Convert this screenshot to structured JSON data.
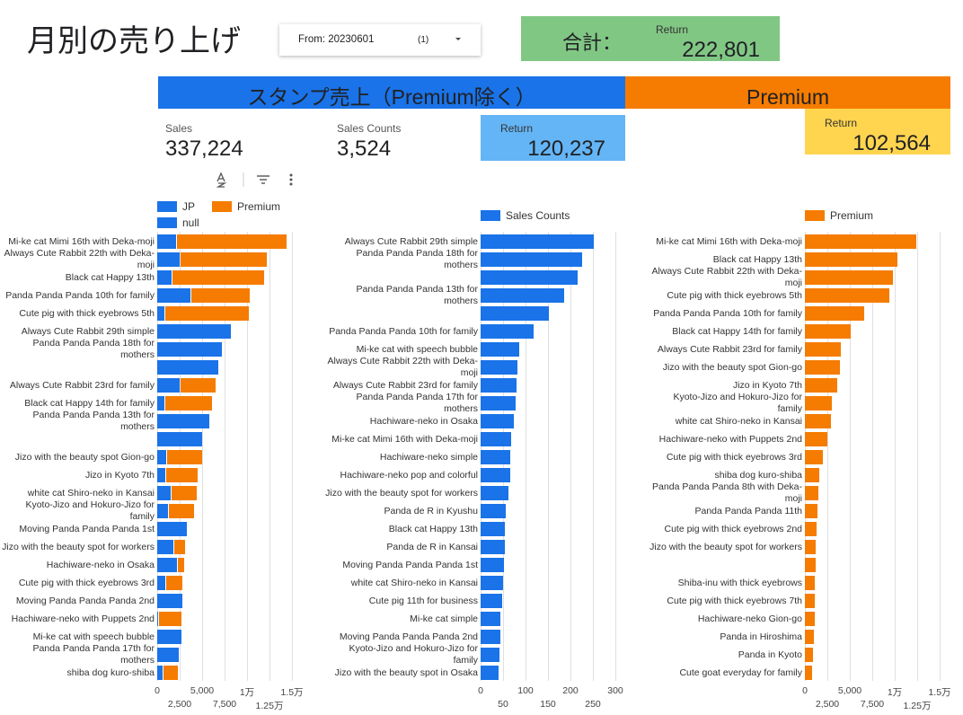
{
  "header": {
    "title": "月別の売り上げ"
  },
  "filter": {
    "label": "From: 20230601",
    "count": "(1)"
  },
  "total": {
    "label": "合計：",
    "caption": "Return",
    "value": "222,801"
  },
  "banners": [
    "スタンプ売上（Premium除く）",
    "Premium"
  ],
  "scorecards": [
    {
      "label": "Sales",
      "value": "337,224"
    },
    {
      "label": "Sales Counts",
      "value": "3,524"
    },
    {
      "label": "Return",
      "value": "120,237"
    },
    {
      "label": "Return",
      "value": "102,564"
    }
  ],
  "chart_data": [
    {
      "type": "bar",
      "orientation": "horizontal",
      "stacked": true,
      "grid": true,
      "categories": [
        "Mi-ke cat Mimi 16th with Deka-moji",
        "Always Cute Rabbit 22th with Deka-moji",
        "Black cat Happy 13th",
        "Panda Panda Panda 10th for family",
        "Cute pig with thick eyebrows 5th",
        "Always Cute Rabbit 29th simple",
        "Panda Panda Panda 18th for mothers",
        null,
        "Always Cute Rabbit 23rd for family",
        "Black cat Happy 14th for family",
        "Panda Panda Panda 13th for mothers",
        null,
        "Jizo with the beauty spot Gion-go",
        "Jizo in Kyoto 7th",
        "white cat Shiro-neko in Kansai",
        "Kyoto-Jizo and Hokuro-Jizo for family",
        "Moving Panda Panda Panda 1st",
        "Jizo with the beauty spot for workers",
        "Hachiware-neko in Osaka",
        "Cute pig with thick eyebrows 3rd",
        "Moving Panda Panda Panda 2nd",
        "Hachiware-neko with Puppets 2nd",
        "Mi-ke cat with speech bubble",
        "Panda Panda Panda 17th for mothers",
        "shiba dog kuro-shiba"
      ],
      "series": [
        {
          "name": "JP",
          "color": "#1a73e8",
          "values": [
            2200,
            2600,
            1700,
            3800,
            900,
            8300,
            7300,
            6900,
            2600,
            900,
            5900,
            5100,
            1100,
            1000,
            1600,
            1300,
            3400,
            1900,
            2300,
            1000,
            2900,
            200,
            2800,
            2500,
            700
          ]
        },
        {
          "name": "Premium",
          "color": "#f57c00",
          "values": [
            12300,
            9700,
            10300,
            6600,
            9400,
            null,
            null,
            null,
            4000,
            5300,
            null,
            null,
            4000,
            3600,
            2900,
            2900,
            null,
            1300,
            800,
            1900,
            null,
            2600,
            null,
            null,
            1700
          ]
        },
        {
          "name": "null",
          "color": "#1a73e8",
          "values": [
            null,
            null,
            null,
            null,
            null,
            null,
            null,
            null,
            null,
            null,
            null,
            null,
            null,
            null,
            null,
            null,
            null,
            null,
            null,
            null,
            null,
            null,
            null,
            null,
            null
          ]
        }
      ],
      "xlim": [
        0,
        15000
      ],
      "xticks": [
        0,
        {
          "value": 2500,
          "label": "2,500"
        },
        {
          "value": 5000,
          "label": "5,000"
        },
        {
          "value": 7500,
          "label": "7,500"
        },
        {
          "value": 10000,
          "label": "1万"
        },
        {
          "value": 12500,
          "label": "1.25万"
        },
        {
          "value": 15000,
          "label": "1.5万"
        }
      ]
    },
    {
      "type": "bar",
      "orientation": "horizontal",
      "stacked": false,
      "grid": true,
      "categories": [
        "Always Cute Rabbit 29th simple",
        "Panda Panda Panda 18th for mothers",
        null,
        "Panda Panda Panda 13th for mothers",
        null,
        "Panda Panda Panda 10th for family",
        "Mi-ke cat with speech bubble",
        "Always Cute Rabbit 22th with Deka-moji",
        "Always Cute Rabbit 23rd for family",
        "Panda Panda Panda 17th for mothers",
        "Hachiware-neko in Osaka",
        "Mi-ke cat Mimi 16th with Deka-moji",
        "Hachiware-neko simple",
        "Hachiware-neko pop and colorful",
        "Jizo with the beauty spot for workers",
        "Panda de R in Kyushu",
        "Black cat Happy 13th",
        "Panda de R in Kansai",
        "Moving Panda Panda Panda 1st",
        "white cat Shiro-neko in Kansai",
        "Cute pig 11th for business",
        "Mi-ke cat simple",
        "Moving Panda Panda Panda 2nd",
        "Kyoto-Jizo and Hokuro-Jizo for family",
        "Jizo with the beauty spot in Osaka"
      ],
      "series": [
        {
          "name": "Sales Counts",
          "color": "#1a73e8",
          "values": [
            252,
            226,
            216,
            186,
            152,
            118,
            86,
            82,
            80,
            78,
            74,
            68,
            66,
            66,
            62,
            56,
            54,
            54,
            52,
            50,
            48,
            44,
            44,
            42,
            40
          ]
        }
      ],
      "xlim": [
        0,
        300
      ],
      "xticks": [
        0,
        50,
        100,
        150,
        200,
        250,
        300
      ]
    },
    {
      "type": "bar",
      "orientation": "horizontal",
      "stacked": false,
      "grid": true,
      "categories": [
        "Mi-ke cat Mimi 16th with Deka-moji",
        "Black cat Happy 13th",
        "Always Cute Rabbit 22th with Deka-moji",
        "Cute pig with thick eyebrows 5th",
        "Panda Panda Panda 10th for family",
        "Black cat Happy 14th for family",
        "Always Cute Rabbit 23rd for family",
        "Jizo with the beauty spot Gion-go",
        "Jizo in Kyoto 7th",
        "Kyoto-Jizo and Hokuro-Jizo for family",
        "white cat Shiro-neko in Kansai",
        "Hachiware-neko with Puppets 2nd",
        "Cute pig with thick eyebrows 3rd",
        "shiba dog kuro-shiba",
        "Panda Panda Panda 8th with Deka-moji",
        "Panda Panda Panda 11th",
        "Cute pig with thick eyebrows 2nd",
        "Jizo with the beauty spot for workers",
        null,
        "Shiba-inu with thick eyebrows",
        "Cute pig with thick eyebrows 7th",
        "Hachiware-neko Gion-go",
        "Panda in Hiroshima",
        "Panda in Kyoto",
        "Cute goat everyday for family"
      ],
      "series": [
        {
          "name": "Premium",
          "color": "#f57c00",
          "values": [
            12400,
            10300,
            9800,
            9400,
            6600,
            5100,
            4000,
            3900,
            3600,
            3000,
            2900,
            2500,
            2000,
            1600,
            1500,
            1400,
            1300,
            1200,
            1200,
            1100,
            1100,
            1100,
            1000,
            900,
            800
          ]
        }
      ],
      "xlim": [
        0,
        15000
      ],
      "xticks": [
        0,
        {
          "value": 2500,
          "label": "2,500"
        },
        {
          "value": 5000,
          "label": "5,000"
        },
        {
          "value": 7500,
          "label": "7,500"
        },
        {
          "value": 10000,
          "label": "1万"
        },
        {
          "value": 12500,
          "label": "1.25万"
        },
        {
          "value": 15000,
          "label": "1.5万"
        }
      ]
    }
  ]
}
